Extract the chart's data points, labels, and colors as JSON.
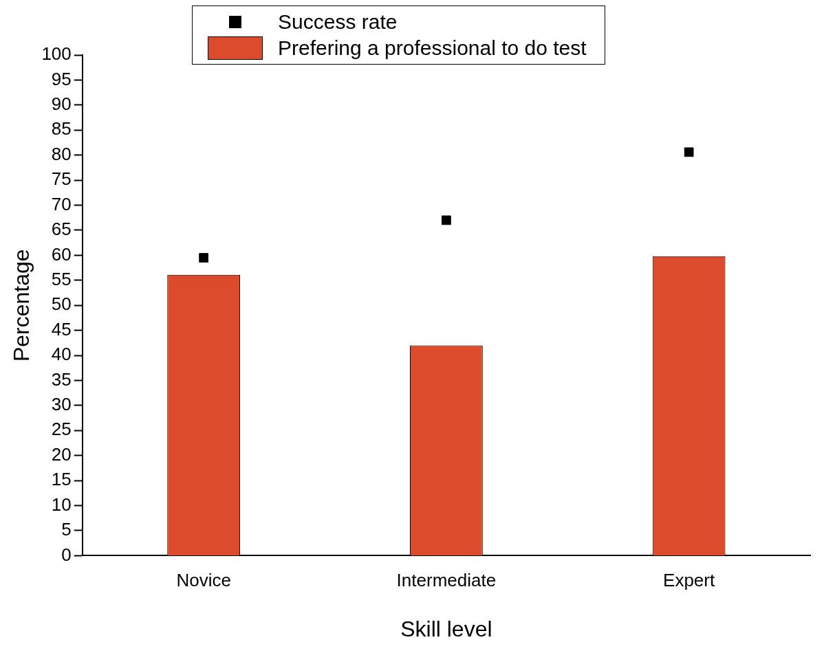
{
  "chart_data": {
    "type": "bar",
    "xlabel": "Skill level",
    "ylabel": "Percentage",
    "categories": [
      "Novice",
      "Intermediate",
      "Expert"
    ],
    "series": [
      {
        "name": "Success rate",
        "type": "scatter",
        "marker": "square",
        "color": "#000000",
        "x": [
          "Novice",
          "Intermediate",
          "Expert"
        ],
        "values": [
          59.5,
          67,
          80.6
        ]
      },
      {
        "name": "Prefering a professional to do test",
        "color": "#db4b2c",
        "values": [
          56.1,
          42,
          59.8
        ]
      }
    ],
    "ylim": [
      0,
      100
    ],
    "yticks": [
      0,
      5,
      10,
      15,
      20,
      25,
      30,
      35,
      40,
      45,
      50,
      55,
      60,
      65,
      70,
      75,
      80,
      85,
      90,
      95,
      100
    ],
    "grid": false,
    "legend": "top"
  }
}
